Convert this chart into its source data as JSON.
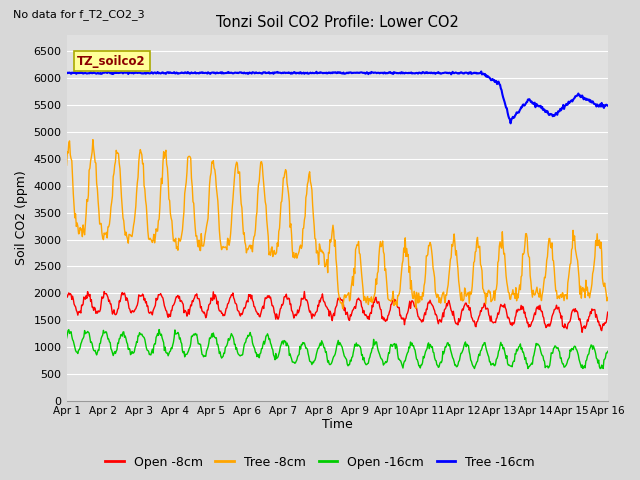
{
  "title": "Tonzi Soil CO2 Profile: Lower CO2",
  "no_data_text": "No data for f_T2_CO2_3",
  "ylabel": "Soil CO2 (ppm)",
  "xlabel": "Time",
  "ylim": [
    0,
    6800
  ],
  "yticks": [
    0,
    500,
    1000,
    1500,
    2000,
    2500,
    3000,
    3500,
    4000,
    4500,
    5000,
    5500,
    6000,
    6500
  ],
  "xtick_labels": [
    "Apr 1",
    "Apr 2",
    "Apr 3",
    "Apr 4",
    "Apr 5",
    "Apr 6",
    "Apr 7",
    "Apr 8",
    "Apr 9",
    "Apr 10",
    "Apr 11",
    "Apr 12",
    "Apr 13",
    "Apr 14",
    "Apr 15",
    "Apr 16"
  ],
  "legend_entries": [
    "Open -8cm",
    "Tree -8cm",
    "Open -16cm",
    "Tree -16cm"
  ],
  "legend_colors": [
    "#ff0000",
    "#ffa500",
    "#00cc00",
    "#0000ff"
  ],
  "bg_color": "#d8d8d8",
  "plot_bg_color": "#e0e0e0",
  "grid_color": "#ffffff",
  "legend_box_facecolor": "#ffff99",
  "legend_box_edgecolor": "#aaaa00",
  "legend_box_text": "TZ_soilco2",
  "figsize": [
    6.4,
    4.8
  ],
  "dpi": 100
}
